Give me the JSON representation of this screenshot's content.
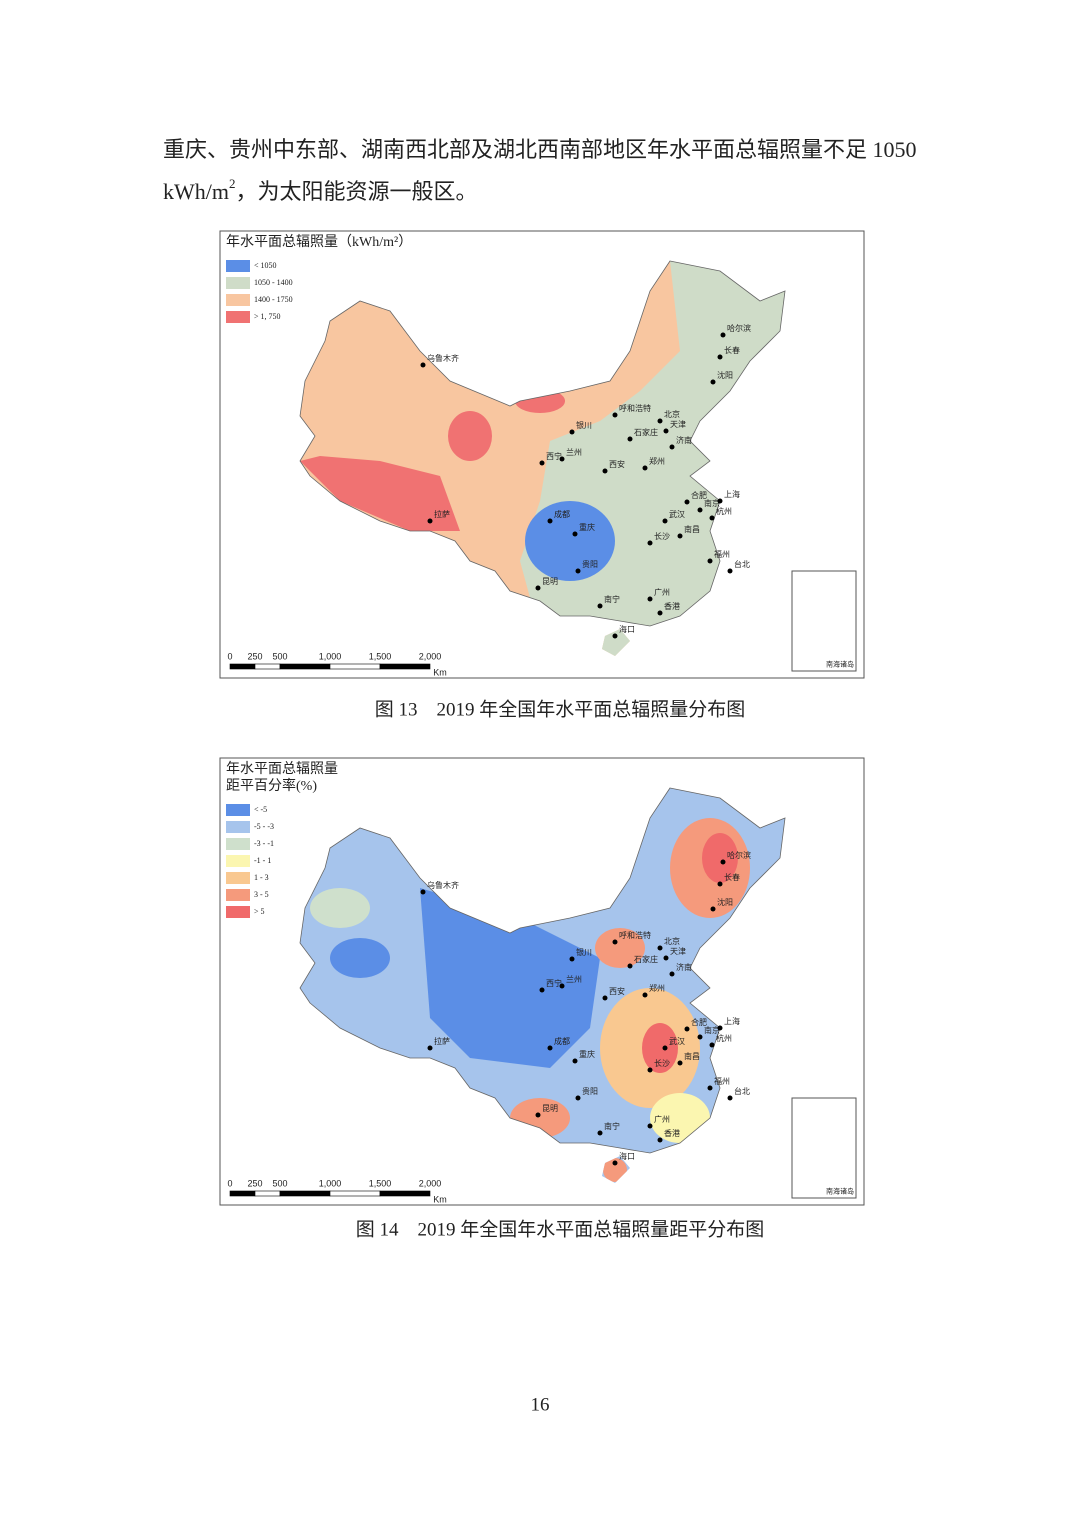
{
  "body": {
    "line1": "重庆、贵州中东部、湖南西北部及湖北西南部地区年水平面总辐照量不足 1050",
    "line2_a": "kWh/m",
    "line2_sup": "2",
    "line2_b": "，为太阳能资源一般区。"
  },
  "cities": [
    "乌鲁木齐",
    "哈尔滨",
    "长春",
    "沈阳",
    "呼和浩特",
    "北京",
    "天津",
    "石家庄",
    "银川",
    "济南",
    "西宁",
    "兰州",
    "西安",
    "郑州",
    "合肥",
    "南京",
    "上海",
    "杭州",
    "武汉",
    "成都",
    "重庆",
    "长沙",
    "南昌",
    "福州",
    "贵阳",
    "拉萨",
    "昆明",
    "南宁",
    "广州",
    "香港",
    "台北",
    "海口"
  ],
  "scale_bar": [
    "0",
    "250",
    "500",
    "1,000",
    "1,500",
    "2,000",
    "Km"
  ],
  "inset_label": "南海诸岛",
  "maps": [
    {
      "legend_title": [
        "年水平面总辐照量（kWh/m²）"
      ],
      "legend": [
        "< 1050",
        "1050 - 1400",
        "1400 - 1750",
        "> 1, 750"
      ],
      "colors": [
        "#5b8ee6",
        "#cfdcc8",
        "#f8c6a0",
        "#f07272"
      ],
      "caption": "图 13　2019 年全国年水平面总辐照量分布图"
    },
    {
      "legend_title": [
        "年水平面总辐照量",
        "距平百分率(%)"
      ],
      "legend": [
        "< -5",
        "-5 - -3",
        "-3 - -1",
        "-1 - 1",
        "1 - 3",
        "3 - 5",
        "> 5"
      ],
      "colors": [
        "#5b8ee6",
        "#a6c4ec",
        "#cfe0cc",
        "#fbf6b0",
        "#f9c890",
        "#f59a7c",
        "#f06a6a"
      ],
      "caption": "图 14　2019 年全国年水平面总辐照量距平分布图"
    }
  ],
  "page_number": "16"
}
